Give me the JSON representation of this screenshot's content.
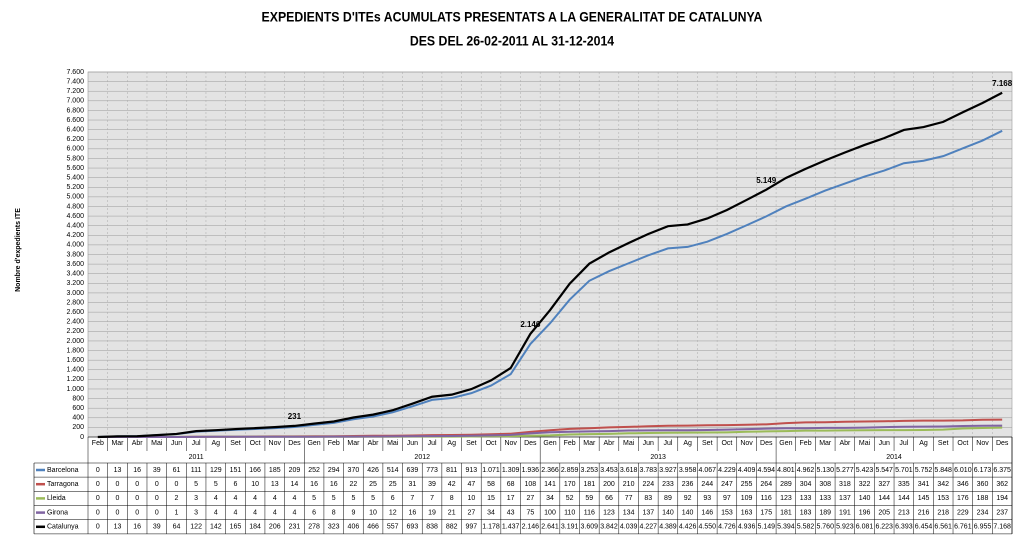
{
  "chart_data": {
    "type": "line",
    "title": "EXPEDIENTS D'ITEs ACUMULATS PRESENTATS A LA GENERALITAT DE CATALUNYA",
    "subtitle": "DES DEL 26-02-2011 AL 31-12-2014",
    "ylabel": "Nombre d'expedients ITE",
    "groups": [
      {
        "label": "2011",
        "categories": [
          "Feb",
          "Mar",
          "Abr",
          "Mai",
          "Jun",
          "Jul",
          "Ag",
          "Set",
          "Oct",
          "Nov",
          "Des"
        ]
      },
      {
        "label": "2012",
        "categories": [
          "Gen",
          "Feb",
          "Mar",
          "Abr",
          "Mai",
          "Jun",
          "Jul",
          "Ag",
          "Set",
          "Oct",
          "Nov",
          "Des"
        ]
      },
      {
        "label": "2013",
        "categories": [
          "Gen",
          "Feb",
          "Mar",
          "Abr",
          "Mai",
          "Jun",
          "Jul",
          "Ag",
          "Set",
          "Oct",
          "Nov",
          "Des"
        ]
      },
      {
        "label": "2014",
        "categories": [
          "Gen",
          "Feb",
          "Mar",
          "Abr",
          "Mai",
          "Jun",
          "Jul",
          "Ag",
          "Set",
          "Oct",
          "Nov",
          "Des"
        ]
      }
    ],
    "series": [
      {
        "name": "Barcelona",
        "color": "#4f81bd",
        "values": [
          0,
          13,
          16,
          39,
          61,
          111,
          129,
          151,
          166,
          185,
          209,
          252,
          294,
          370,
          426,
          514,
          639,
          773,
          811,
          913,
          1071,
          1309,
          1936,
          2366,
          2859,
          3253,
          3453,
          3618,
          3783,
          3927,
          3958,
          4067,
          4229,
          4409,
          4594,
          4801,
          4962,
          5130,
          5277,
          5423,
          5547,
          5701,
          5752,
          5848,
          6010,
          6173,
          6375
        ],
        "value_labels": [
          "0",
          "13",
          "16",
          "39",
          "61",
          "111",
          "129",
          "151",
          "166",
          "185",
          "209",
          "252",
          "294",
          "370",
          "426",
          "514",
          "639",
          "773",
          "811",
          "913",
          "1.071",
          "1.309",
          "1.936",
          "2.366",
          "2.859",
          "3.253",
          "3.453",
          "3.618",
          "3.783",
          "3.927",
          "3.958",
          "4.067",
          "4.229",
          "4.409",
          "4.594",
          "4.801",
          "4.962",
          "5.130",
          "5.277",
          "5.423",
          "5.547",
          "5.701",
          "5.752",
          "5.848",
          "6.010",
          "6.173",
          "6.375"
        ]
      },
      {
        "name": "Tarragona",
        "color": "#c0504d",
        "values": [
          0,
          0,
          0,
          0,
          0,
          5,
          5,
          6,
          10,
          13,
          14,
          16,
          16,
          22,
          25,
          25,
          31,
          39,
          42,
          47,
          58,
          68,
          108,
          141,
          170,
          181,
          200,
          210,
          224,
          233,
          236,
          244,
          247,
          255,
          264,
          289,
          304,
          308,
          318,
          322,
          327,
          335,
          341,
          342,
          346,
          360,
          362
        ],
        "value_labels": [
          "0",
          "0",
          "0",
          "0",
          "0",
          "5",
          "5",
          "6",
          "10",
          "13",
          "14",
          "16",
          "16",
          "22",
          "25",
          "25",
          "31",
          "39",
          "42",
          "47",
          "58",
          "68",
          "108",
          "141",
          "170",
          "181",
          "200",
          "210",
          "224",
          "233",
          "236",
          "244",
          "247",
          "255",
          "264",
          "289",
          "304",
          "308",
          "318",
          "322",
          "327",
          "335",
          "341",
          "342",
          "346",
          "360",
          "362"
        ]
      },
      {
        "name": "Lleida",
        "color": "#9bbb59",
        "values": [
          0,
          0,
          0,
          0,
          2,
          3,
          4,
          4,
          4,
          4,
          4,
          5,
          5,
          5,
          5,
          6,
          7,
          7,
          8,
          10,
          15,
          17,
          27,
          34,
          52,
          59,
          66,
          77,
          83,
          89,
          92,
          93,
          97,
          109,
          116,
          123,
          133,
          133,
          137,
          140,
          144,
          144,
          145,
          153,
          176,
          188,
          194
        ],
        "value_labels": [
          "0",
          "0",
          "0",
          "0",
          "2",
          "3",
          "4",
          "4",
          "4",
          "4",
          "4",
          "5",
          "5",
          "5",
          "5",
          "6",
          "7",
          "7",
          "8",
          "10",
          "15",
          "17",
          "27",
          "34",
          "52",
          "59",
          "66",
          "77",
          "83",
          "89",
          "92",
          "93",
          "97",
          "109",
          "116",
          "123",
          "133",
          "133",
          "137",
          "140",
          "144",
          "144",
          "145",
          "153",
          "176",
          "188",
          "194"
        ]
      },
      {
        "name": "Girona",
        "color": "#8064a2",
        "values": [
          0,
          0,
          0,
          0,
          1,
          3,
          4,
          4,
          4,
          4,
          4,
          6,
          8,
          9,
          10,
          12,
          16,
          19,
          21,
          27,
          34,
          43,
          75,
          100,
          110,
          116,
          123,
          134,
          137,
          140,
          140,
          146,
          153,
          163,
          175,
          181,
          183,
          189,
          191,
          196,
          205,
          213,
          216,
          218,
          229,
          234,
          237
        ],
        "value_labels": [
          "0",
          "0",
          "0",
          "0",
          "1",
          "3",
          "4",
          "4",
          "4",
          "4",
          "4",
          "6",
          "8",
          "9",
          "10",
          "12",
          "16",
          "19",
          "21",
          "27",
          "34",
          "43",
          "75",
          "100",
          "110",
          "116",
          "123",
          "134",
          "137",
          "140",
          "140",
          "146",
          "153",
          "163",
          "175",
          "181",
          "183",
          "189",
          "191",
          "196",
          "205",
          "213",
          "216",
          "218",
          "229",
          "234",
          "237"
        ]
      },
      {
        "name": "Catalunya",
        "color": "#000000",
        "values": [
          0,
          13,
          16,
          39,
          64,
          122,
          142,
          165,
          184,
          206,
          231,
          278,
          323,
          406,
          466,
          557,
          693,
          838,
          882,
          997,
          1178,
          1437,
          2146,
          2641,
          3191,
          3609,
          3842,
          4039,
          4227,
          4389,
          4426,
          4550,
          4726,
          4936,
          5149,
          5394,
          5582,
          5760,
          5923,
          6081,
          6223,
          6393,
          6454,
          6561,
          6761,
          6955,
          7168
        ],
        "value_labels": [
          "0",
          "13",
          "16",
          "39",
          "64",
          "122",
          "142",
          "165",
          "184",
          "206",
          "231",
          "278",
          "323",
          "406",
          "466",
          "557",
          "693",
          "838",
          "882",
          "997",
          "1.178",
          "1.437",
          "2.146",
          "2.641",
          "3.191",
          "3.609",
          "3.842",
          "4.039",
          "4.227",
          "4.389",
          "4.426",
          "4.550",
          "4.726",
          "4.936",
          "5.149",
          "5.394",
          "5.582",
          "5.760",
          "5.923",
          "6.081",
          "6.223",
          "6.393",
          "6.454",
          "6.561",
          "6.761",
          "6.955",
          "7.168"
        ]
      }
    ],
    "annotations": [
      {
        "value": 231,
        "label": "231"
      },
      {
        "value": 2146,
        "label": "2.146"
      },
      {
        "value": 5149,
        "label": "5.149"
      },
      {
        "value": 7168,
        "label": "7.168"
      }
    ],
    "ylim": [
      0,
      7600
    ],
    "yticks": [
      0,
      200,
      400,
      600,
      800,
      {
        "value": 1000,
        "label": "1.000"
      },
      {
        "value": 1200,
        "label": "1.200"
      },
      {
        "value": 1400,
        "label": "1.400"
      },
      {
        "value": 1600,
        "label": "1.600"
      },
      {
        "value": 1800,
        "label": "1.800"
      },
      {
        "value": 2000,
        "label": "2.000"
      },
      {
        "value": 2200,
        "label": "2.200"
      },
      {
        "value": 2400,
        "label": "2.400"
      },
      {
        "value": 2600,
        "label": "2.600"
      },
      {
        "value": 2800,
        "label": "2.800"
      },
      {
        "value": 3000,
        "label": "3.000"
      },
      {
        "value": 3200,
        "label": "3.200"
      },
      {
        "value": 3400,
        "label": "3.400"
      },
      {
        "value": 3600,
        "label": "3.600"
      },
      {
        "value": 3800,
        "label": "3.800"
      },
      {
        "value": 4000,
        "label": "4.000"
      },
      {
        "value": 4200,
        "label": "4.200"
      },
      {
        "value": 4400,
        "label": "4.400"
      },
      {
        "value": 4600,
        "label": "4.600"
      },
      {
        "value": 4800,
        "label": "4.800"
      },
      {
        "value": 5000,
        "label": "5.000"
      },
      {
        "value": 5200,
        "label": "5.200"
      },
      {
        "value": 5400,
        "label": "5.400"
      },
      {
        "value": 5600,
        "label": "5.600"
      },
      {
        "value": 5800,
        "label": "5.800"
      },
      {
        "value": 6000,
        "label": "6.000"
      },
      {
        "value": 6200,
        "label": "6.200"
      },
      {
        "value": 6400,
        "label": "6.400"
      },
      {
        "value": 6600,
        "label": "6.600"
      },
      {
        "value": 6800,
        "label": "6.800"
      },
      {
        "value": 7000,
        "label": "7.000"
      },
      {
        "value": 7200,
        "label": "7.200"
      },
      {
        "value": 7400,
        "label": "7.400"
      },
      {
        "value": 7600,
        "label": "7.600"
      }
    ],
    "grid": true
  }
}
